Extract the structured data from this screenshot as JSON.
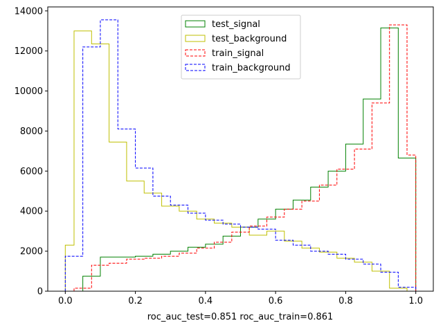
{
  "chart_data": {
    "type": "histogram",
    "xlabel": "roc_auc_test=0.851 roc_auc_train=0.861",
    "ylabel": "",
    "xlim": [
      -0.05,
      1.05
    ],
    "ylim": [
      0,
      14200
    ],
    "x_ticks": [
      "0.0",
      "0.2",
      "0.4",
      "0.6",
      "0.8",
      "1.0"
    ],
    "y_ticks": [
      "0",
      "2000",
      "4000",
      "6000",
      "8000",
      "10000",
      "12000",
      "14000"
    ],
    "legend_position": "top-center",
    "series": [
      {
        "name": "test_signal",
        "color": "#008000",
        "linestyle": "solid",
        "bins": [
          0.0,
          0.05,
          0.1,
          0.15,
          0.2,
          0.25,
          0.3,
          0.35,
          0.4,
          0.45,
          0.5,
          0.55,
          0.6,
          0.65,
          0.7,
          0.75,
          0.8,
          0.85,
          0.9,
          0.95,
          1.0
        ],
        "values": [
          0,
          750,
          1700,
          1700,
          1750,
          1850,
          2000,
          2200,
          2350,
          2750,
          3200,
          3600,
          4100,
          4550,
          5200,
          6000,
          7350,
          9600,
          13150,
          6650
        ]
      },
      {
        "name": "test_background",
        "color": "#bfbf00",
        "linestyle": "solid",
        "bins": [
          0.0,
          0.025,
          0.075,
          0.125,
          0.175,
          0.225,
          0.275,
          0.325,
          0.375,
          0.425,
          0.475,
          0.525,
          0.575,
          0.625,
          0.675,
          0.725,
          0.775,
          0.825,
          0.875,
          0.925,
          0.975,
          1.0
        ],
        "values": [
          2300,
          13000,
          12350,
          7450,
          5500,
          4900,
          4250,
          4000,
          3600,
          3400,
          3200,
          2800,
          3000,
          2500,
          2150,
          1950,
          1650,
          1450,
          1000,
          150,
          0
        ]
      },
      {
        "name": "train_signal",
        "color": "#ff0000",
        "linestyle": "dashed",
        "bins": [
          0.025,
          0.075,
          0.125,
          0.175,
          0.225,
          0.275,
          0.325,
          0.375,
          0.425,
          0.475,
          0.525,
          0.575,
          0.625,
          0.675,
          0.725,
          0.775,
          0.825,
          0.875,
          0.925,
          0.975,
          1.0
        ],
        "values": [
          150,
          1300,
          1400,
          1600,
          1650,
          1750,
          1900,
          2150,
          2450,
          2950,
          3250,
          3700,
          4100,
          4500,
          5300,
          6100,
          7100,
          9400,
          13300,
          6800
        ]
      },
      {
        "name": "train_background",
        "color": "#0000ff",
        "linestyle": "dashed",
        "bins": [
          0.0,
          0.05,
          0.1,
          0.15,
          0.2,
          0.25,
          0.3,
          0.35,
          0.4,
          0.45,
          0.5,
          0.55,
          0.6,
          0.65,
          0.7,
          0.75,
          0.8,
          0.85,
          0.9,
          0.95,
          1.0
        ],
        "values": [
          1750,
          12200,
          13550,
          8100,
          6150,
          4750,
          4300,
          3900,
          3550,
          3350,
          3200,
          3100,
          2550,
          2300,
          2000,
          1850,
          1600,
          1350,
          950,
          200
        ]
      }
    ]
  }
}
